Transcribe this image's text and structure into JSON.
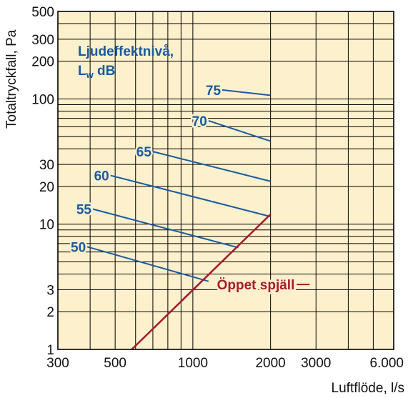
{
  "colors": {
    "plot_background": "#fdf0cc",
    "grid": "#000000",
    "level_lines": "#1a5aa0",
    "open_damper_line": "#a51d2d"
  },
  "chart_data": {
    "type": "line",
    "x_scale": "log",
    "y_scale": "log",
    "xlim": [
      300,
      6000
    ],
    "ylim": [
      1,
      500
    ],
    "grid": true,
    "xlabel": "Luftflöde, l/s",
    "ylabel": "Totaltryckfall, Pa",
    "x_ticks": [
      {
        "value": 300,
        "label": "300"
      },
      {
        "value": 500,
        "label": "500"
      },
      {
        "value": 1000,
        "label": "1000"
      },
      {
        "value": 2000,
        "label": "2000"
      },
      {
        "value": 3000,
        "label": "3000"
      },
      {
        "value": 6000,
        "label": "6.000"
      }
    ],
    "x_grid": [
      300,
      400,
      500,
      600,
      700,
      800,
      900,
      1000,
      2000,
      3000,
      4000,
      5000,
      6000
    ],
    "y_ticks": [
      {
        "value": 1,
        "label": "1"
      },
      {
        "value": 2,
        "label": "2"
      },
      {
        "value": 3,
        "label": "3"
      },
      {
        "value": 10,
        "label": "10"
      },
      {
        "value": 20,
        "label": "20"
      },
      {
        "value": 30,
        "label": "30"
      },
      {
        "value": 100,
        "label": "100"
      },
      {
        "value": 200,
        "label": "200"
      },
      {
        "value": 300,
        "label": "300"
      },
      {
        "value": 500,
        "label": "500"
      }
    ],
    "y_grid": [
      1,
      2,
      3,
      4,
      5,
      6,
      7,
      8,
      9,
      10,
      20,
      30,
      40,
      50,
      60,
      70,
      80,
      90,
      100,
      200,
      300,
      400,
      500
    ],
    "legend_title_line1": "Ljudeffektnivå,",
    "legend_title_line2_main": "L",
    "legend_title_line2_sub": "w",
    "legend_title_line2_unit": " dB",
    "level_series": [
      {
        "name": "75",
        "x": [
          1300,
          2000
        ],
        "y": [
          118,
          107
        ]
      },
      {
        "name": "70",
        "x": [
          1150,
          2000
        ],
        "y": [
          67,
          46
        ]
      },
      {
        "name": "65",
        "x": [
          700,
          2000
        ],
        "y": [
          38,
          22
        ]
      },
      {
        "name": "60",
        "x": [
          480,
          2000
        ],
        "y": [
          24.5,
          11.5
        ]
      },
      {
        "name": "55",
        "x": [
          410,
          1500
        ],
        "y": [
          13.2,
          6.5
        ]
      },
      {
        "name": "50",
        "x": [
          390,
          1150
        ],
        "y": [
          6.6,
          3.5
        ]
      }
    ],
    "open_damper": {
      "name": "Öppet spjäll",
      "x": [
        580,
        2000
      ],
      "y": [
        1,
        12
      ],
      "label_anchor": {
        "x": 1600,
        "y": 3.3
      }
    }
  }
}
